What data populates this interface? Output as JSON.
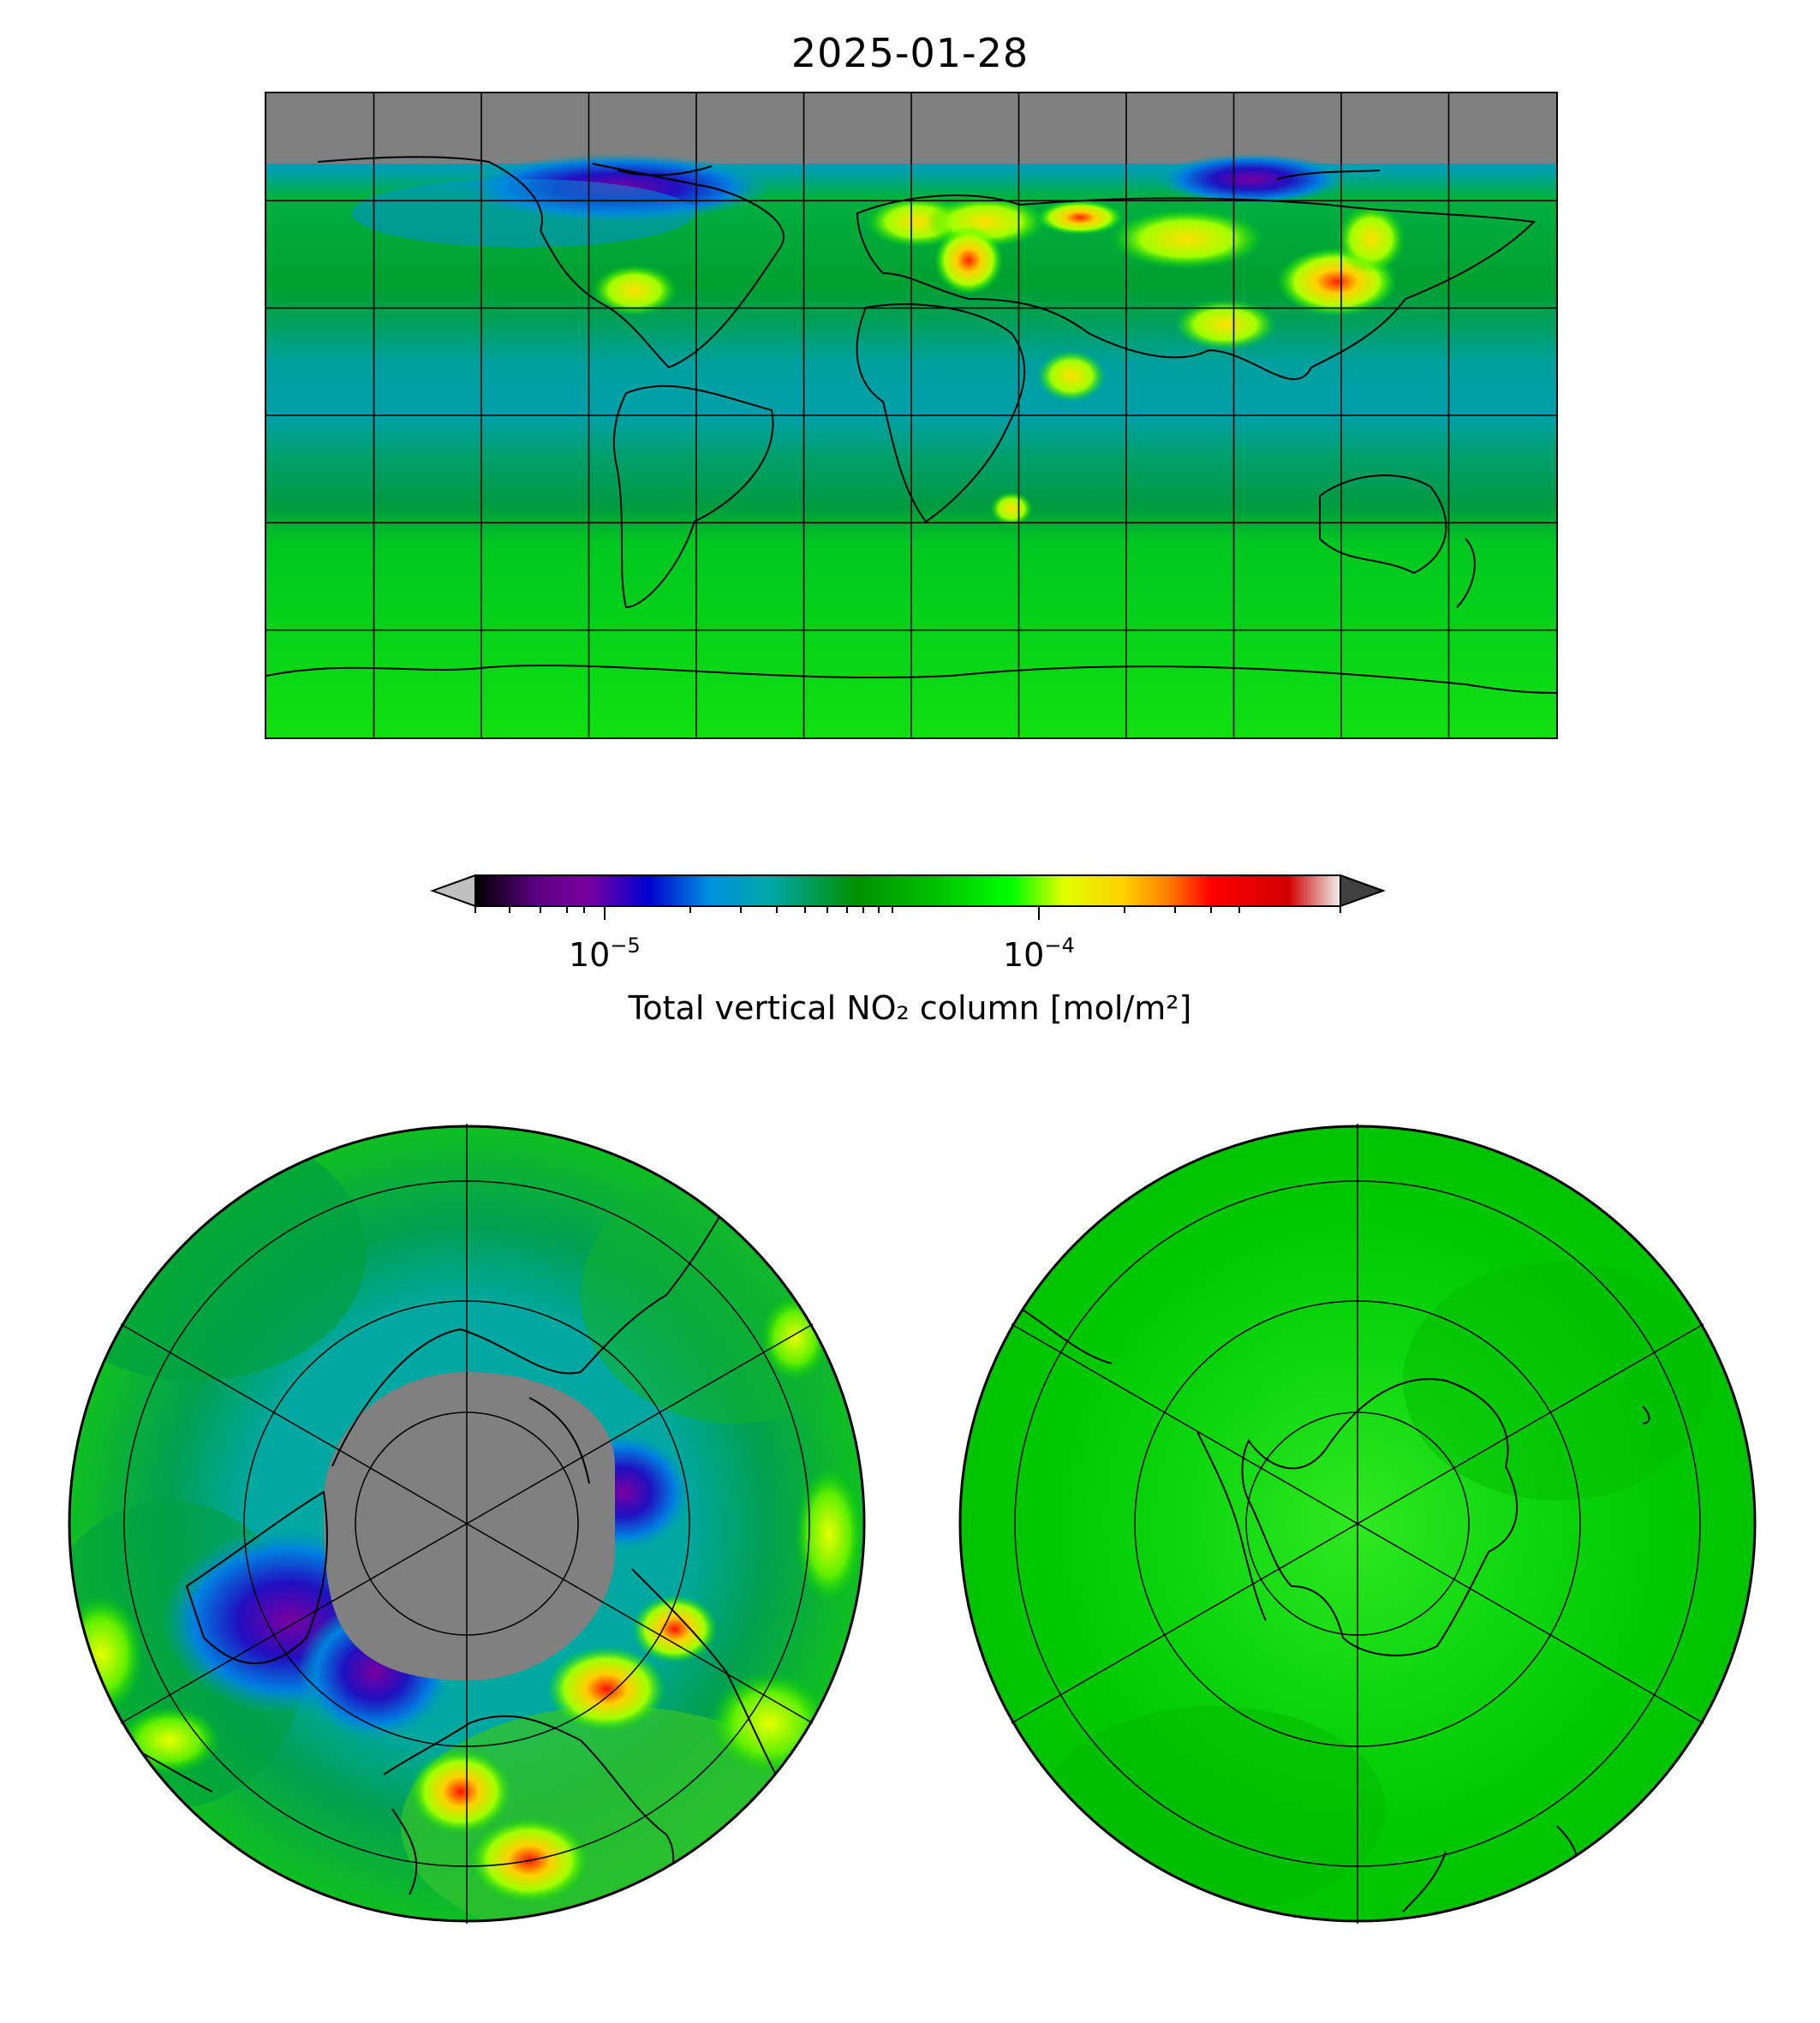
{
  "title": "2025-01-28",
  "colorbar": {
    "label": "Total vertical NO₂ column [mol/m²]",
    "ticks": [
      {
        "base": "10",
        "exp": "−5",
        "value": 1e-05
      },
      {
        "base": "10",
        "exp": "−4",
        "value": 0.0001
      }
    ],
    "range": [
      5e-06,
      0.0005
    ],
    "scale": "log",
    "extend": "both",
    "colors": [
      "#000000",
      "#7a00a0",
      "#0000d0",
      "#0090e0",
      "#00a8a8",
      "#009000",
      "#00c000",
      "#00ff00",
      "#e0ff00",
      "#ffd000",
      "#ff8000",
      "#ff0000",
      "#d00000",
      "#f0f0f0"
    ],
    "under_color": "#c0c0c0",
    "over_color": "#404040"
  },
  "maps": {
    "world": {
      "projection": "plate-carree",
      "gridlines": true,
      "no_data_color": "#808080"
    },
    "north_polar": {
      "projection": "north-polar-stereographic",
      "gridlines": true,
      "no_data_color": "#808080"
    },
    "south_polar": {
      "projection": "south-polar-stereographic",
      "gridlines": true
    }
  }
}
